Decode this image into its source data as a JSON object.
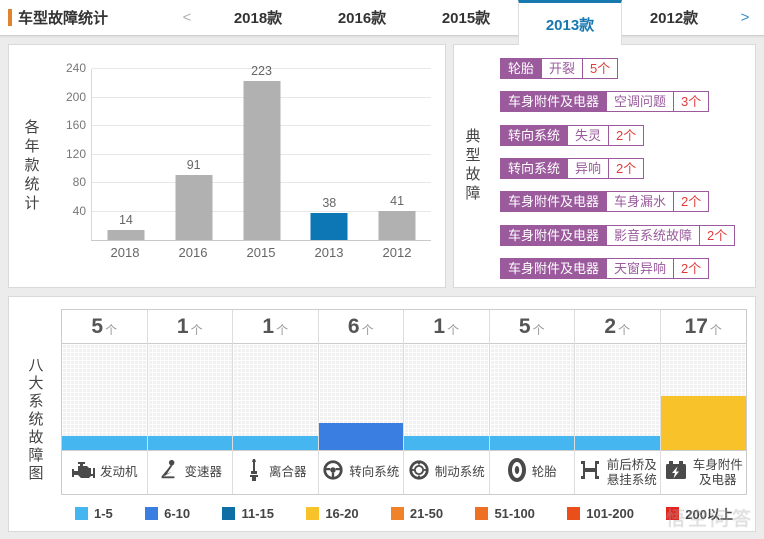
{
  "header": {
    "title": "车型故障统计",
    "prev_arrow": "<",
    "next_arrow": ">",
    "tabs": [
      {
        "label": "2018款",
        "active": false
      },
      {
        "label": "2016款",
        "active": false
      },
      {
        "label": "2015款",
        "active": false
      },
      {
        "label": "2013款",
        "active": true
      },
      {
        "label": "2012款",
        "active": false
      }
    ]
  },
  "yearly": {
    "side_label": "各年款统计"
  },
  "typical": {
    "side_label": "典型故障",
    "items": [
      {
        "system": "轮胎",
        "issue": "开裂",
        "count": "5个"
      },
      {
        "system": "车身附件及电器",
        "issue": "空调问题",
        "count": "3个"
      },
      {
        "system": "转向系统",
        "issue": "失灵",
        "count": "2个"
      },
      {
        "system": "转向系统",
        "issue": "异响",
        "count": "2个"
      },
      {
        "system": "车身附件及电器",
        "issue": "车身漏水",
        "count": "2个"
      },
      {
        "system": "车身附件及电器",
        "issue": "影音系统故障",
        "count": "2个"
      },
      {
        "system": "车身附件及电器",
        "issue": "天窗异响",
        "count": "2个"
      }
    ]
  },
  "systems": {
    "side_label": "八大系统故障图",
    "unit": "个",
    "items": [
      {
        "name": "发动机",
        "icon": "engine-icon",
        "count": 5
      },
      {
        "name": "变速器",
        "icon": "gear-shifter-icon",
        "count": 1
      },
      {
        "name": "离合器",
        "icon": "clutch-pedal-icon",
        "count": 1
      },
      {
        "name": "转向系统",
        "icon": "steering-wheel-icon",
        "count": 6
      },
      {
        "name": "制动系统",
        "icon": "brake-disc-icon",
        "count": 1
      },
      {
        "name": "轮胎",
        "icon": "tire-icon",
        "count": 5
      },
      {
        "name": "前后桥及\n悬挂系统",
        "icon": "axle-icon",
        "count": 2
      },
      {
        "name": "车身附件\n及电器",
        "icon": "battery-icon",
        "count": 17
      }
    ]
  },
  "legend": [
    {
      "range": "1-5",
      "color": "#45b6f0"
    },
    {
      "range": "6-10",
      "color": "#3b7ee2"
    },
    {
      "range": "11-15",
      "color": "#0e6fa5"
    },
    {
      "range": "16-20",
      "color": "#f8c32a"
    },
    {
      "range": "21-50",
      "color": "#f0832a"
    },
    {
      "range": "51-100",
      "color": "#ee7024"
    },
    {
      "range": "101-200",
      "color": "#e94e1b"
    },
    {
      "range": "200以上",
      "color": "#e3241c"
    }
  ],
  "watermark": "悟空问答",
  "chart_data": [
    {
      "type": "bar",
      "title": "各年款统计",
      "categories": [
        "2018",
        "2016",
        "2015",
        "2013",
        "2012"
      ],
      "values": [
        14,
        91,
        223,
        38,
        41
      ],
      "highlight_category": "2013",
      "bar_color": "#b1b1b1",
      "highlight_color": "#0d76b4",
      "ylim": [
        0,
        240
      ],
      "yticks": [
        40,
        80,
        120,
        160,
        200,
        240
      ],
      "grid": true,
      "xlabel": "",
      "ylabel": "各年款统计"
    },
    {
      "type": "bar",
      "title": "八大系统故障图",
      "categories": [
        "发动机",
        "变速器",
        "离合器",
        "转向系统",
        "制动系统",
        "轮胎",
        "前后桥及悬挂系统",
        "车身附件及电器"
      ],
      "values": [
        5,
        1,
        1,
        6,
        1,
        5,
        2,
        17
      ],
      "color_buckets": [
        {
          "max": 5,
          "color": "#45b6f0"
        },
        {
          "max": 10,
          "color": "#3b7ee2"
        },
        {
          "max": 15,
          "color": "#0e6fa5"
        },
        {
          "max": 20,
          "color": "#f8c32a"
        },
        {
          "max": 50,
          "color": "#f0832a"
        },
        {
          "max": 100,
          "color": "#ee7024"
        },
        {
          "max": 200,
          "color": "#e94e1b"
        },
        {
          "max": 99999,
          "color": "#e3241c"
        }
      ],
      "xlabel": "",
      "ylabel": "八大系统故障图"
    }
  ]
}
